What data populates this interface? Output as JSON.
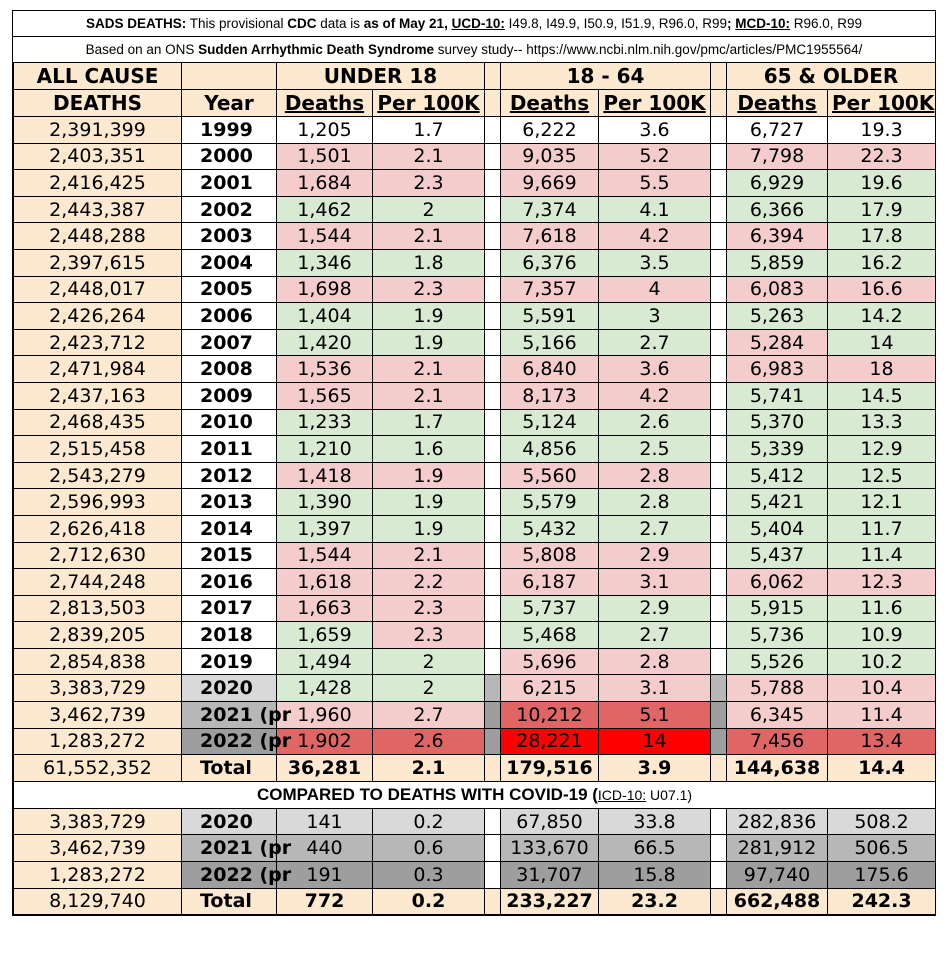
{
  "header": {
    "line1": {
      "p1": "SADS DEATHS:",
      "p2": " This provisional ",
      "p3": "CDC",
      "p4": " data is ",
      "p5": "as of May 21, ",
      "p6": "UCD-10:",
      "p7": " I49.8, I49.9, I50.9, I51.9, R96.0, R99",
      "p8": "; ",
      "p9": "MCD-10:",
      "p10": " R96.0, R99"
    },
    "line2": {
      "p1": "Based on an ONS ",
      "p2": "Sudden Arrhythmic Death Syndrome",
      "p3": " survey study-- https://www.ncbi.nlm.nih.gov/pmc/articles/PMC1955564/"
    }
  },
  "columns": {
    "all_cause_1": "ALL CAUSE",
    "all_cause_2": "DEATHS",
    "year": "Year",
    "group1": "UNDER 18",
    "group2": "18 - 64",
    "group3": "65 & OLDER",
    "deaths": "Deaths",
    "per100k": "Per 100K"
  },
  "rows": [
    {
      "acd": "2,391,399",
      "year": "1999",
      "d1": "1,205",
      "p1": "1.7",
      "d2": "6,222",
      "p2": "3.6",
      "d3": "6,727",
      "p3": "19.3",
      "c": [
        "wh",
        "wh",
        "wh",
        "wh",
        "wh",
        "wh",
        "wh"
      ]
    },
    {
      "acd": "2,403,351",
      "year": "2000",
      "d1": "1,501",
      "p1": "2.1",
      "d2": "9,035",
      "p2": "5.2",
      "d3": "7,798",
      "p3": "22.3",
      "c": [
        "wh",
        "pk",
        "pk",
        "pk",
        "pk",
        "pk",
        "pk"
      ]
    },
    {
      "acd": "2,416,425",
      "year": "2001",
      "d1": "1,684",
      "p1": "2.3",
      "d2": "9,669",
      "p2": "5.5",
      "d3": "6,929",
      "p3": "19.6",
      "c": [
        "wh",
        "pk",
        "pk",
        "pk",
        "pk",
        "gr",
        "gr"
      ]
    },
    {
      "acd": "2,443,387",
      "year": "2002",
      "d1": "1,462",
      "p1": "2",
      "d2": "7,374",
      "p2": "4.1",
      "d3": "6,366",
      "p3": "17.9",
      "c": [
        "wh",
        "gr",
        "gr",
        "gr",
        "gr",
        "gr",
        "gr"
      ]
    },
    {
      "acd": "2,448,288",
      "year": "2003",
      "d1": "1,544",
      "p1": "2.1",
      "d2": "7,618",
      "p2": "4.2",
      "d3": "6,394",
      "p3": "17.8",
      "c": [
        "wh",
        "pk",
        "pk",
        "pk",
        "pk",
        "pk",
        "gr"
      ]
    },
    {
      "acd": "2,397,615",
      "year": "2004",
      "d1": "1,346",
      "p1": "1.8",
      "d2": "6,376",
      "p2": "3.5",
      "d3": "5,859",
      "p3": "16.2",
      "c": [
        "wh",
        "gr",
        "gr",
        "gr",
        "gr",
        "gr",
        "gr"
      ]
    },
    {
      "acd": "2,448,017",
      "year": "2005",
      "d1": "1,698",
      "p1": "2.3",
      "d2": "7,357",
      "p2": "4",
      "d3": "6,083",
      "p3": "16.6",
      "c": [
        "wh",
        "pk",
        "pk",
        "pk",
        "pk",
        "pk",
        "pk"
      ]
    },
    {
      "acd": "2,426,264",
      "year": "2006",
      "d1": "1,404",
      "p1": "1.9",
      "d2": "5,591",
      "p2": "3",
      "d3": "5,263",
      "p3": "14.2",
      "c": [
        "wh",
        "gr",
        "gr",
        "gr",
        "gr",
        "gr",
        "gr"
      ]
    },
    {
      "acd": "2,423,712",
      "year": "2007",
      "d1": "1,420",
      "p1": "1.9",
      "d2": "5,166",
      "p2": "2.7",
      "d3": "5,284",
      "p3": "14",
      "c": [
        "wh",
        "gr",
        "gr",
        "gr",
        "gr",
        "pk",
        "gr"
      ]
    },
    {
      "acd": "2,471,984",
      "year": "2008",
      "d1": "1,536",
      "p1": "2.1",
      "d2": "6,840",
      "p2": "3.6",
      "d3": "6,983",
      "p3": "18",
      "c": [
        "wh",
        "pk",
        "pk",
        "pk",
        "pk",
        "pk",
        "pk"
      ]
    },
    {
      "acd": "2,437,163",
      "year": "2009",
      "d1": "1,565",
      "p1": "2.1",
      "d2": "8,173",
      "p2": "4.2",
      "d3": "5,741",
      "p3": "14.5",
      "c": [
        "wh",
        "pk",
        "pk",
        "pk",
        "pk",
        "gr",
        "gr"
      ]
    },
    {
      "acd": "2,468,435",
      "year": "2010",
      "d1": "1,233",
      "p1": "1.7",
      "d2": "5,124",
      "p2": "2.6",
      "d3": "5,370",
      "p3": "13.3",
      "c": [
        "wh",
        "gr",
        "gr",
        "gr",
        "gr",
        "gr",
        "gr"
      ]
    },
    {
      "acd": "2,515,458",
      "year": "2011",
      "d1": "1,210",
      "p1": "1.6",
      "d2": "4,856",
      "p2": "2.5",
      "d3": "5,339",
      "p3": "12.9",
      "c": [
        "wh",
        "gr",
        "gr",
        "gr",
        "gr",
        "gr",
        "gr"
      ]
    },
    {
      "acd": "2,543,279",
      "year": "2012",
      "d1": "1,418",
      "p1": "1.9",
      "d2": "5,560",
      "p2": "2.8",
      "d3": "5,412",
      "p3": "12.5",
      "c": [
        "wh",
        "pk",
        "pk",
        "pk",
        "pk",
        "gr",
        "gr"
      ]
    },
    {
      "acd": "2,596,993",
      "year": "2013",
      "d1": "1,390",
      "p1": "1.9",
      "d2": "5,579",
      "p2": "2.8",
      "d3": "5,421",
      "p3": "12.1",
      "c": [
        "wh",
        "gr",
        "gr",
        "gr",
        "gr",
        "gr",
        "gr"
      ]
    },
    {
      "acd": "2,626,418",
      "year": "2014",
      "d1": "1,397",
      "p1": "1.9",
      "d2": "5,432",
      "p2": "2.7",
      "d3": "5,404",
      "p3": "11.7",
      "c": [
        "wh",
        "gr",
        "gr",
        "gr",
        "gr",
        "gr",
        "gr"
      ]
    },
    {
      "acd": "2,712,630",
      "year": "2015",
      "d1": "1,544",
      "p1": "2.1",
      "d2": "5,808",
      "p2": "2.9",
      "d3": "5,437",
      "p3": "11.4",
      "c": [
        "wh",
        "pk",
        "pk",
        "pk",
        "pk",
        "gr",
        "gr"
      ]
    },
    {
      "acd": "2,744,248",
      "year": "2016",
      "d1": "1,618",
      "p1": "2.2",
      "d2": "6,187",
      "p2": "3.1",
      "d3": "6,062",
      "p3": "12.3",
      "c": [
        "wh",
        "pk",
        "pk",
        "pk",
        "pk",
        "pk",
        "pk"
      ]
    },
    {
      "acd": "2,813,503",
      "year": "2017",
      "d1": "1,663",
      "p1": "2.3",
      "d2": "5,737",
      "p2": "2.9",
      "d3": "5,915",
      "p3": "11.6",
      "c": [
        "wh",
        "pk",
        "pk",
        "gr",
        "gr",
        "gr",
        "gr"
      ]
    },
    {
      "acd": "2,839,205",
      "year": "2018",
      "d1": "1,659",
      "p1": "2.3",
      "d2": "5,468",
      "p2": "2.7",
      "d3": "5,736",
      "p3": "10.9",
      "c": [
        "wh",
        "gr",
        "pk",
        "gr",
        "gr",
        "gr",
        "gr"
      ]
    },
    {
      "acd": "2,854,838",
      "year": "2019",
      "d1": "1,494",
      "p1": "2",
      "d2": "5,696",
      "p2": "2.8",
      "d3": "5,526",
      "p3": "10.2",
      "c": [
        "wh",
        "gr",
        "gr",
        "pk",
        "pk",
        "gr",
        "gr"
      ]
    },
    {
      "acd": "3,383,729",
      "year": "2020",
      "d1": "1,428",
      "p1": "2",
      "d2": "6,215",
      "p2": "3.1",
      "d3": "5,788",
      "p3": "10.4",
      "c": [
        "g1",
        "gr",
        "gr",
        "pk",
        "pk",
        "pk",
        "pk"
      ],
      "sp": "g2"
    },
    {
      "acd": "3,462,739",
      "year": "2021 (pr",
      "d1": "1,960",
      "p1": "2.7",
      "d2": "10,212",
      "p2": "5.1",
      "d3": "6,345",
      "p3": "11.4",
      "c": [
        "g2",
        "pk",
        "pk",
        "rd",
        "rd",
        "pk",
        "pk"
      ],
      "sp": "g3"
    },
    {
      "acd": "1,283,272",
      "year": "2022 (pr",
      "d1": "1,902",
      "p1": "2.6",
      "d2": "28,221",
      "p2": "14",
      "d3": "7,456",
      "p3": "13.4",
      "c": [
        "g3",
        "rd",
        "rd",
        "rr",
        "rr",
        "rd",
        "rd"
      ],
      "sp": "g3"
    }
  ],
  "total": {
    "acd": "61,552,352",
    "year": "Total",
    "d1": "36,281",
    "p1": "2.1",
    "d2": "179,516",
    "p2": "3.9",
    "d3": "144,638",
    "p3": "14.4"
  },
  "compare": {
    "title": "COMPARED TO DEATHS WITH COVID-19 (",
    "icd": "ICD-10:",
    "code": " U07.1)",
    "rows": [
      {
        "acd": "3,383,729",
        "year": "2020",
        "d1": "141",
        "p1": "0.2",
        "d2": "67,850",
        "p2": "33.8",
        "d3": "282,836",
        "p3": "508.2",
        "c": "g1"
      },
      {
        "acd": "3,462,739",
        "year": "2021 (pr",
        "d1": "440",
        "p1": "0.6",
        "d2": "133,670",
        "p2": "66.5",
        "d3": "281,912",
        "p3": "506.5",
        "c": "g2"
      },
      {
        "acd": "1,283,272",
        "year": "2022 (pr",
        "d1": "191",
        "p1": "0.3",
        "d2": "31,707",
        "p2": "15.8",
        "d3": "97,740",
        "p3": "175.6",
        "c": "g3"
      }
    ],
    "total": {
      "acd": "8,129,740",
      "year": "Total",
      "d1": "772",
      "p1": "0.2",
      "d2": "233,227",
      "p2": "23.2",
      "d3": "662,488",
      "p3": "242.3"
    }
  }
}
